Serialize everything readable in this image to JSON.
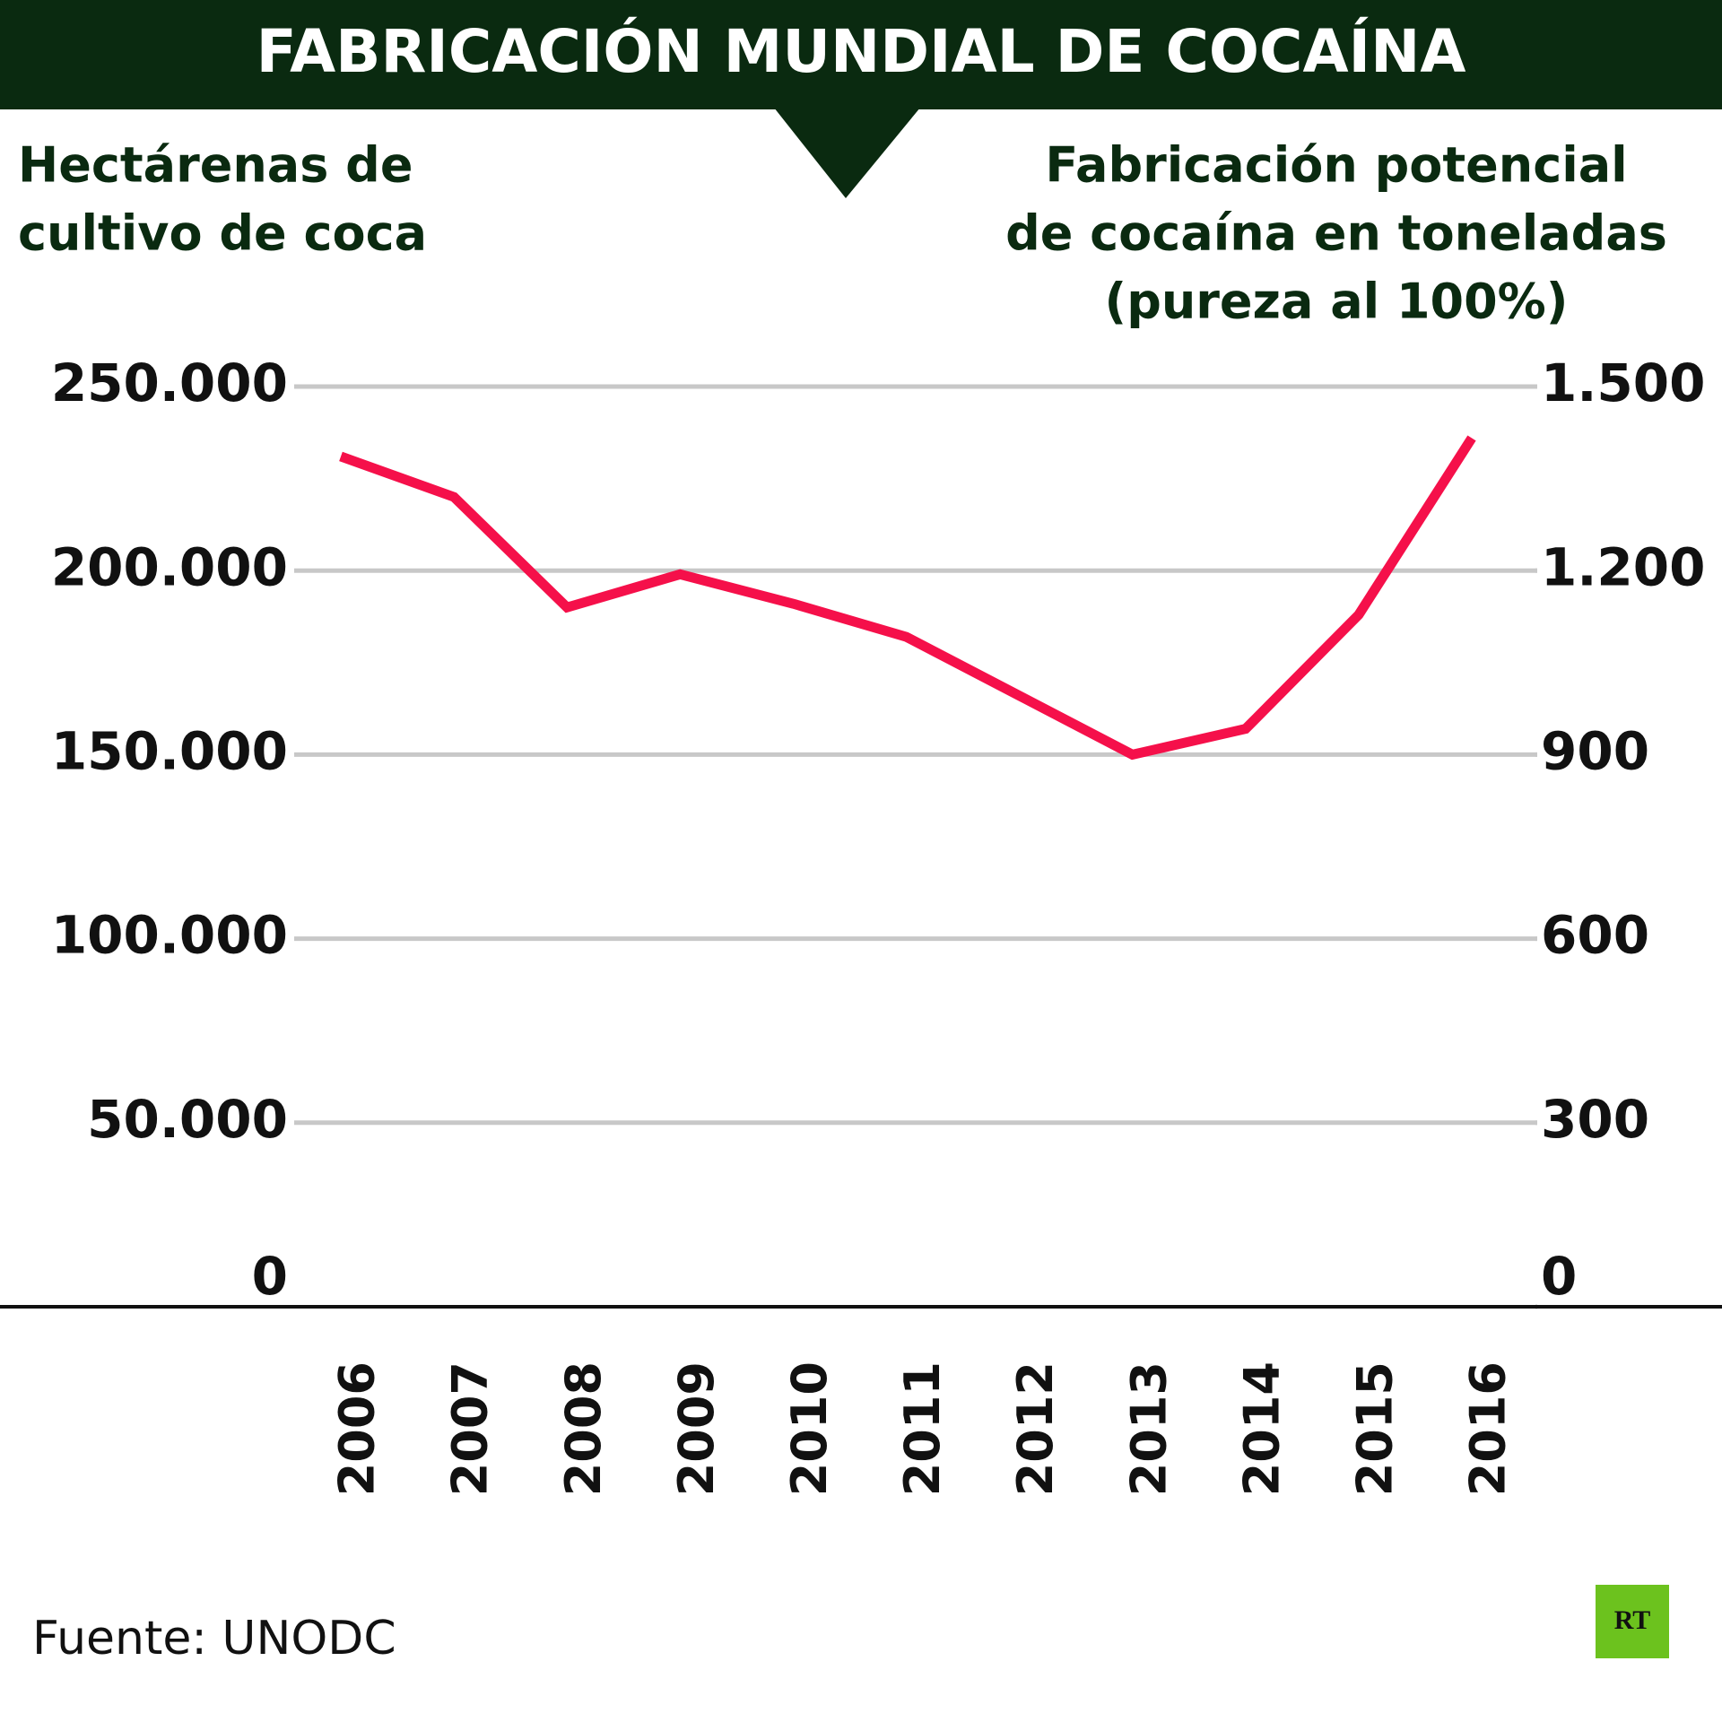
{
  "chart_data": {
    "type": "line",
    "title": "FABRICACIÓN MUNDIAL DE COCAÍNA",
    "y_label": [
      "Hectárenas de",
      "cultivo de coca"
    ],
    "y2_label": [
      "Fabricación potencial",
      "de cocaína en toneladas",
      "(pureza al 100%)"
    ],
    "categories": [
      "2006",
      "2007",
      "2008",
      "2009",
      "2010",
      "2011",
      "2012",
      "2013",
      "2014",
      "2015",
      "2016"
    ],
    "values": [
      231000,
      220000,
      190000,
      199000,
      191000,
      182000,
      166000,
      150000,
      157000,
      188000,
      236000
    ],
    "color": "#f5104a",
    "ylim": [
      0,
      250000
    ],
    "yticks": [
      0,
      {
        "value": 50000,
        "label": "50.000"
      },
      {
        "value": 100000,
        "label": "100.000"
      },
      {
        "value": 150000,
        "label": "150.000"
      },
      {
        "value": 200000,
        "label": "200.000"
      },
      {
        "value": 250000,
        "label": "250.000"
      }
    ],
    "y2lim": [
      0,
      1500
    ],
    "y2ticks": [
      0,
      300,
      600,
      900,
      {
        "value": 1200,
        "label": "1.200"
      },
      {
        "value": 1500,
        "label": "1.500"
      }
    ],
    "grid": true,
    "source": "Fuente: UNODC",
    "logo": "RT"
  }
}
